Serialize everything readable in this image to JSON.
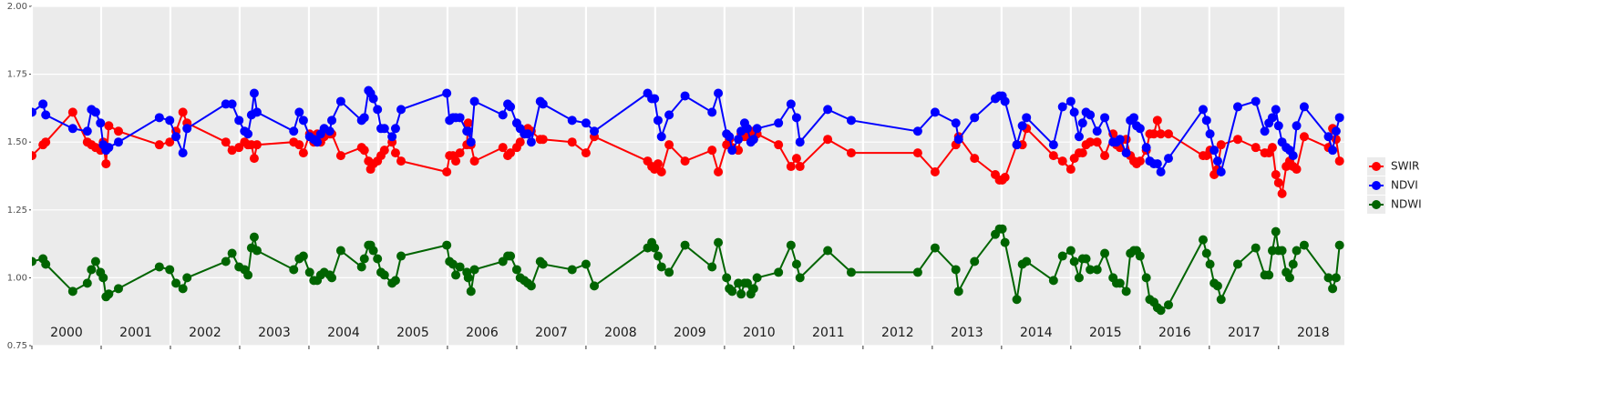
{
  "chart_data": {
    "type": "line",
    "x": [
      2000.0,
      2000.16,
      2000.2,
      2000.59,
      2000.8,
      2000.86,
      2000.92,
      2000.99,
      2001.03,
      2001.07,
      2001.11,
      2001.25,
      2001.84,
      2001.99,
      2002.08,
      2002.18,
      2002.24,
      2002.8,
      2002.89,
      2002.99,
      2003.07,
      2003.12,
      2003.17,
      2003.21,
      2003.25,
      2003.78,
      2003.86,
      2003.92,
      2004.01,
      2004.07,
      2004.12,
      2004.17,
      2004.22,
      2004.3,
      2004.33,
      2004.46,
      2004.76,
      2004.8,
      2004.86,
      2004.89,
      2004.93,
      2004.99,
      2005.04,
      2005.09,
      2005.2,
      2005.25,
      2005.33,
      2005.99,
      2006.03,
      2006.08,
      2006.12,
      2006.18,
      2006.28,
      2006.3,
      2006.34,
      2006.39,
      2006.8,
      2006.87,
      2006.91,
      2007.0,
      2007.05,
      2007.11,
      2007.16,
      2007.21,
      2007.34,
      2007.38,
      2007.8,
      2008.0,
      2008.12,
      2008.89,
      2008.95,
      2008.99,
      2009.04,
      2009.09,
      2009.2,
      2009.43,
      2009.82,
      2009.91,
      2010.03,
      2010.07,
      2010.11,
      2010.2,
      2010.24,
      2010.29,
      2010.33,
      2010.38,
      2010.42,
      2010.47,
      2010.78,
      2010.96,
      2011.04,
      2011.09,
      2011.49,
      2011.83,
      2012.79,
      2013.04,
      2013.34,
      2013.38,
      2013.61,
      2013.91,
      2013.97,
      2014.01,
      2014.05,
      2014.22,
      2014.3,
      2014.36,
      2014.75,
      2014.88,
      2015.0,
      2015.05,
      2015.12,
      2015.17,
      2015.22,
      2015.28,
      2015.38,
      2015.49,
      2015.61,
      2015.66,
      2015.71,
      2015.8,
      2015.86,
      2015.91,
      2015.95,
      2016.0,
      2016.09,
      2016.14,
      2016.2,
      2016.25,
      2016.3,
      2016.41,
      2016.91,
      2016.96,
      2017.01,
      2017.07,
      2017.12,
      2017.17,
      2017.41,
      2017.67,
      2017.8,
      2017.86,
      2017.91,
      2017.96,
      2018.0,
      2018.05,
      2018.11,
      2018.16,
      2018.21,
      2018.26,
      2018.37,
      2018.72,
      2018.78,
      2018.83,
      2018.88
    ],
    "series": [
      {
        "name": "SWIR",
        "color": "#ff0000",
        "values": [
          1.45,
          1.49,
          1.5,
          1.61,
          1.5,
          1.49,
          1.48,
          1.47,
          1.5,
          1.42,
          1.56,
          1.54,
          1.49,
          1.5,
          1.54,
          1.61,
          1.57,
          1.5,
          1.47,
          1.48,
          1.5,
          1.49,
          1.49,
          1.44,
          1.49,
          1.5,
          1.49,
          1.46,
          1.53,
          1.5,
          1.53,
          1.5,
          1.52,
          1.53,
          1.53,
          1.45,
          1.48,
          1.47,
          1.43,
          1.4,
          1.42,
          1.43,
          1.45,
          1.47,
          1.5,
          1.46,
          1.43,
          1.39,
          1.45,
          1.45,
          1.43,
          1.46,
          1.49,
          1.57,
          1.49,
          1.43,
          1.48,
          1.45,
          1.46,
          1.48,
          1.5,
          1.53,
          1.55,
          1.54,
          1.51,
          1.51,
          1.5,
          1.46,
          1.52,
          1.43,
          1.41,
          1.4,
          1.42,
          1.39,
          1.49,
          1.43,
          1.47,
          1.39,
          1.49,
          1.51,
          1.48,
          1.47,
          1.53,
          1.52,
          1.52,
          1.54,
          1.51,
          1.53,
          1.49,
          1.41,
          1.44,
          1.41,
          1.51,
          1.46,
          1.46,
          1.39,
          1.49,
          1.52,
          1.44,
          1.38,
          1.36,
          1.36,
          1.37,
          1.49,
          1.49,
          1.55,
          1.45,
          1.43,
          1.4,
          1.44,
          1.46,
          1.46,
          1.49,
          1.5,
          1.5,
          1.45,
          1.53,
          1.49,
          1.48,
          1.51,
          1.45,
          1.43,
          1.42,
          1.43,
          1.47,
          1.53,
          1.53,
          1.58,
          1.53,
          1.53,
          1.45,
          1.45,
          1.47,
          1.38,
          1.4,
          1.49,
          1.51,
          1.48,
          1.46,
          1.46,
          1.48,
          1.38,
          1.35,
          1.31,
          1.41,
          1.43,
          1.41,
          1.4,
          1.52,
          1.48,
          1.55,
          1.51,
          1.43
        ]
      },
      {
        "name": "NDVI",
        "color": "#0000ff",
        "values": [
          1.61,
          1.64,
          1.6,
          1.55,
          1.54,
          1.62,
          1.61,
          1.57,
          1.49,
          1.47,
          1.48,
          1.5,
          1.59,
          1.58,
          1.52,
          1.46,
          1.55,
          1.64,
          1.64,
          1.58,
          1.54,
          1.53,
          1.6,
          1.68,
          1.61,
          1.54,
          1.61,
          1.58,
          1.52,
          1.51,
          1.5,
          1.53,
          1.55,
          1.54,
          1.58,
          1.65,
          1.58,
          1.59,
          1.69,
          1.68,
          1.66,
          1.62,
          1.55,
          1.55,
          1.52,
          1.55,
          1.62,
          1.68,
          1.58,
          1.59,
          1.59,
          1.59,
          1.54,
          1.54,
          1.5,
          1.65,
          1.6,
          1.64,
          1.63,
          1.57,
          1.55,
          1.53,
          1.53,
          1.5,
          1.65,
          1.64,
          1.58,
          1.57,
          1.54,
          1.68,
          1.66,
          1.66,
          1.58,
          1.52,
          1.6,
          1.67,
          1.61,
          1.68,
          1.53,
          1.52,
          1.47,
          1.51,
          1.54,
          1.57,
          1.55,
          1.5,
          1.51,
          1.55,
          1.57,
          1.64,
          1.59,
          1.5,
          1.62,
          1.58,
          1.54,
          1.61,
          1.57,
          1.51,
          1.59,
          1.66,
          1.67,
          1.67,
          1.65,
          1.49,
          1.56,
          1.59,
          1.49,
          1.63,
          1.65,
          1.61,
          1.52,
          1.57,
          1.61,
          1.6,
          1.54,
          1.59,
          1.5,
          1.5,
          1.51,
          1.46,
          1.58,
          1.59,
          1.56,
          1.55,
          1.48,
          1.43,
          1.42,
          1.42,
          1.39,
          1.44,
          1.62,
          1.58,
          1.53,
          1.47,
          1.43,
          1.39,
          1.63,
          1.65,
          1.54,
          1.57,
          1.59,
          1.62,
          1.56,
          1.5,
          1.48,
          1.47,
          1.45,
          1.56,
          1.63,
          1.52,
          1.47,
          1.54,
          1.59
        ]
      },
      {
        "name": "NDWI",
        "color": "#006400",
        "values": [
          1.06,
          1.07,
          1.05,
          0.95,
          0.98,
          1.03,
          1.06,
          1.02,
          1.0,
          0.93,
          0.94,
          0.96,
          1.04,
          1.03,
          0.98,
          0.96,
          1.0,
          1.06,
          1.09,
          1.04,
          1.03,
          1.01,
          1.11,
          1.15,
          1.1,
          1.03,
          1.07,
          1.08,
          1.02,
          0.99,
          0.99,
          1.01,
          1.02,
          1.01,
          1.0,
          1.1,
          1.04,
          1.07,
          1.12,
          1.12,
          1.1,
          1.07,
          1.02,
          1.01,
          0.98,
          0.99,
          1.08,
          1.12,
          1.06,
          1.05,
          1.01,
          1.04,
          1.02,
          1.0,
          0.95,
          1.03,
          1.06,
          1.08,
          1.08,
          1.03,
          1.0,
          0.99,
          0.98,
          0.97,
          1.06,
          1.05,
          1.03,
          1.05,
          0.97,
          1.11,
          1.13,
          1.11,
          1.08,
          1.04,
          1.02,
          1.12,
          1.04,
          1.13,
          1.0,
          0.96,
          0.95,
          0.98,
          0.94,
          0.98,
          0.98,
          0.94,
          0.96,
          1.0,
          1.02,
          1.12,
          1.05,
          1.0,
          1.1,
          1.02,
          1.02,
          1.11,
          1.03,
          0.95,
          1.06,
          1.16,
          1.18,
          1.18,
          1.13,
          0.92,
          1.05,
          1.06,
          0.99,
          1.08,
          1.1,
          1.06,
          1.0,
          1.07,
          1.07,
          1.03,
          1.03,
          1.09,
          1.0,
          0.98,
          0.98,
          0.95,
          1.09,
          1.1,
          1.1,
          1.08,
          1.0,
          0.92,
          0.91,
          0.89,
          0.88,
          0.9,
          1.14,
          1.09,
          1.05,
          0.98,
          0.97,
          0.92,
          1.05,
          1.11,
          1.01,
          1.01,
          1.1,
          1.17,
          1.1,
          1.1,
          1.02,
          1.0,
          1.05,
          1.1,
          1.12,
          1.0,
          0.96,
          1.0,
          1.12
        ]
      }
    ],
    "xlim": [
      2000,
      2018.95
    ],
    "xticks": [
      2000,
      2001,
      2002,
      2003,
      2004,
      2005,
      2006,
      2007,
      2008,
      2009,
      2010,
      2011,
      2012,
      2013,
      2014,
      2015,
      2016,
      2017,
      2018
    ],
    "year_labels": [
      2000,
      2001,
      2002,
      2003,
      2004,
      2005,
      2006,
      2007,
      2008,
      2009,
      2010,
      2011,
      2012,
      2013,
      2014,
      2015,
      2016,
      2017,
      2018
    ],
    "ylim": [
      0.75,
      2.0
    ],
    "yticks": [
      {
        "value": 0.75,
        "label": "0.75"
      },
      {
        "value": 1.0,
        "label": "1.00"
      },
      {
        "value": 1.25,
        "label": "1.25"
      },
      {
        "value": 1.5,
        "label": "1.50"
      },
      {
        "value": 1.75,
        "label": "1.75"
      },
      {
        "value": 2.0,
        "label": "2.00"
      }
    ],
    "grid": true,
    "legend": "right"
  }
}
